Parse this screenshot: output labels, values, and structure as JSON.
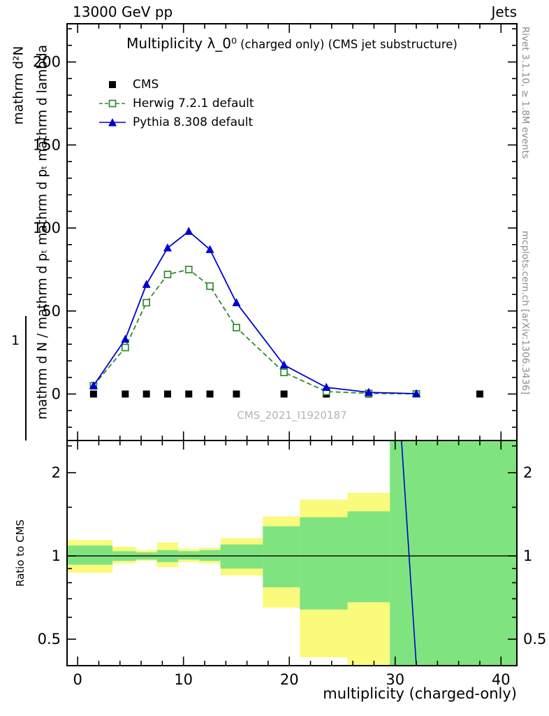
{
  "header": {
    "left_label": "13000 GeV pp",
    "right_label": "Jets"
  },
  "title": {
    "main": "Multiplicity λ_0⁰",
    "sub": "(charged only) (CMS jet substructure)"
  },
  "legend": [
    {
      "id": "cms",
      "label": "CMS",
      "marker": "filled-square",
      "line": "none",
      "color": "#000000"
    },
    {
      "id": "herwig",
      "label": "Herwig 7.2.1 default",
      "marker": "open-square",
      "line": "dashed",
      "color": "#2e8b2e"
    },
    {
      "id": "pythia",
      "label": "Pythia 8.308 default",
      "marker": "filled-triangle",
      "line": "solid",
      "color": "#0000cd"
    }
  ],
  "watermark": "CMS_2021_I1920187",
  "ylabel": {
    "numerator": "mathrm d²N",
    "long": "mathrm d N / mathrm d pₜ mathrm d pₜ mathrm d lambda",
    "one": "1"
  },
  "ratio_ylabel": "Ratio to CMS",
  "xlabel": "multiplicity (charged-only)",
  "side_notes": {
    "rivet": "Rivet 3.1.10, ≥ 1.8M events",
    "mcplots": "mcplots.cern.ch [arXiv:1306.3436]"
  },
  "chart_data": {
    "type": "line",
    "title": "Multiplicity λ_0⁰ (charged only) (CMS jet substructure)",
    "xlabel": "multiplicity (charged-only)",
    "ylabel": "1/(mathrm d N/mathrm d pₜ) mathrm d²N/(mathrm d pₜ mathrm d lambda)",
    "xlim": [
      -1,
      41.5
    ],
    "main_ylim": [
      -28,
      223
    ],
    "x_ticks": [
      0,
      10,
      20,
      30,
      40
    ],
    "x_minor_step": 2,
    "main_y_ticks": [
      0,
      50,
      100,
      150,
      200
    ],
    "main_y_minor_step": 10,
    "ratio_ylim": [
      0.401,
      2.615
    ],
    "ratio_y_ticks": [
      0.5,
      1,
      2
    ],
    "ratio_y_minor": [
      0.4,
      0.6,
      0.7,
      0.8,
      0.9,
      1.5,
      2.5
    ],
    "legend_position": "top-left",
    "grid": false,
    "colors": {
      "yellow_band": "#fafa7d",
      "green_band": "#7fe47f",
      "cms": "#000000",
      "herwig": "#2e8b2e",
      "pythia": "#0000cd",
      "unity_line": "#000000"
    },
    "series": [
      {
        "id": "cms",
        "name": "CMS",
        "marker": "filled-square",
        "line": "none",
        "color": "#000000",
        "x": [
          1.5,
          4.5,
          6.5,
          8.5,
          10.5,
          12.5,
          15,
          19.5,
          23.5,
          27.5,
          32,
          38
        ],
        "y": [
          0,
          0,
          0,
          0,
          0,
          0,
          0,
          0,
          0,
          0,
          0,
          0
        ]
      },
      {
        "id": "herwig",
        "name": "Herwig 7.2.1 default",
        "marker": "open-square",
        "line": "dashed",
        "color": "#2e8b2e",
        "x": [
          1.5,
          4.5,
          6.5,
          8.5,
          10.5,
          12.5,
          15,
          19.5,
          23.5,
          27.5,
          32
        ],
        "y": [
          5,
          28,
          55,
          72,
          75,
          65,
          40,
          13,
          1.5,
          0.4,
          0.1
        ]
      },
      {
        "id": "pythia",
        "name": "Pythia 8.308 default",
        "marker": "filled-triangle",
        "line": "solid",
        "color": "#0000cd",
        "x": [
          1.5,
          4.5,
          6.5,
          8.5,
          10.5,
          12.5,
          15,
          19.5,
          23.5,
          27.5,
          32
        ],
        "y": [
          5,
          33,
          66,
          88,
          98,
          87,
          55,
          17.5,
          4,
          1,
          0.2
        ]
      }
    ],
    "ratio_bands": [
      {
        "x0": -1,
        "x1": 3.3,
        "yellow": [
          0.87,
          1.14
        ],
        "green": [
          0.93,
          1.09
        ]
      },
      {
        "x0": 3.3,
        "x1": 5.5,
        "yellow": [
          0.94,
          1.08
        ],
        "green": [
          0.96,
          1.04
        ]
      },
      {
        "x0": 5.5,
        "x1": 7.5,
        "yellow": [
          0.96,
          1.05
        ],
        "green": [
          0.97,
          1.03
        ]
      },
      {
        "x0": 7.5,
        "x1": 9.5,
        "yellow": [
          0.91,
          1.12
        ],
        "green": [
          0.95,
          1.05
        ]
      },
      {
        "x0": 9.5,
        "x1": 11.5,
        "yellow": [
          0.95,
          1.06
        ],
        "green": [
          0.97,
          1.04
        ]
      },
      {
        "x0": 11.5,
        "x1": 13.5,
        "yellow": [
          0.94,
          1.07
        ],
        "green": [
          0.96,
          1.05
        ]
      },
      {
        "x0": 13.5,
        "x1": 17.5,
        "yellow": [
          0.85,
          1.16
        ],
        "green": [
          0.9,
          1.1
        ]
      },
      {
        "x0": 17.5,
        "x1": 21,
        "yellow": [
          0.65,
          1.39
        ],
        "green": [
          0.77,
          1.28
        ]
      },
      {
        "x0": 21,
        "x1": 25.5,
        "yellow": [
          0.43,
          1.6
        ],
        "green": [
          0.64,
          1.38
        ]
      },
      {
        "x0": 25.5,
        "x1": 29.5,
        "yellow": [
          0.4,
          1.69
        ],
        "green": [
          0.68,
          1.45
        ]
      },
      {
        "x0": 29.5,
        "x1": 41.5,
        "yellow": null,
        "green": [
          0.401,
          2.615
        ]
      }
    ],
    "ratio_lines": {
      "unity": 1,
      "pythia_drop": {
        "x": [
          30.6,
          32.0
        ],
        "y": [
          2.615,
          0.401
        ]
      }
    }
  }
}
